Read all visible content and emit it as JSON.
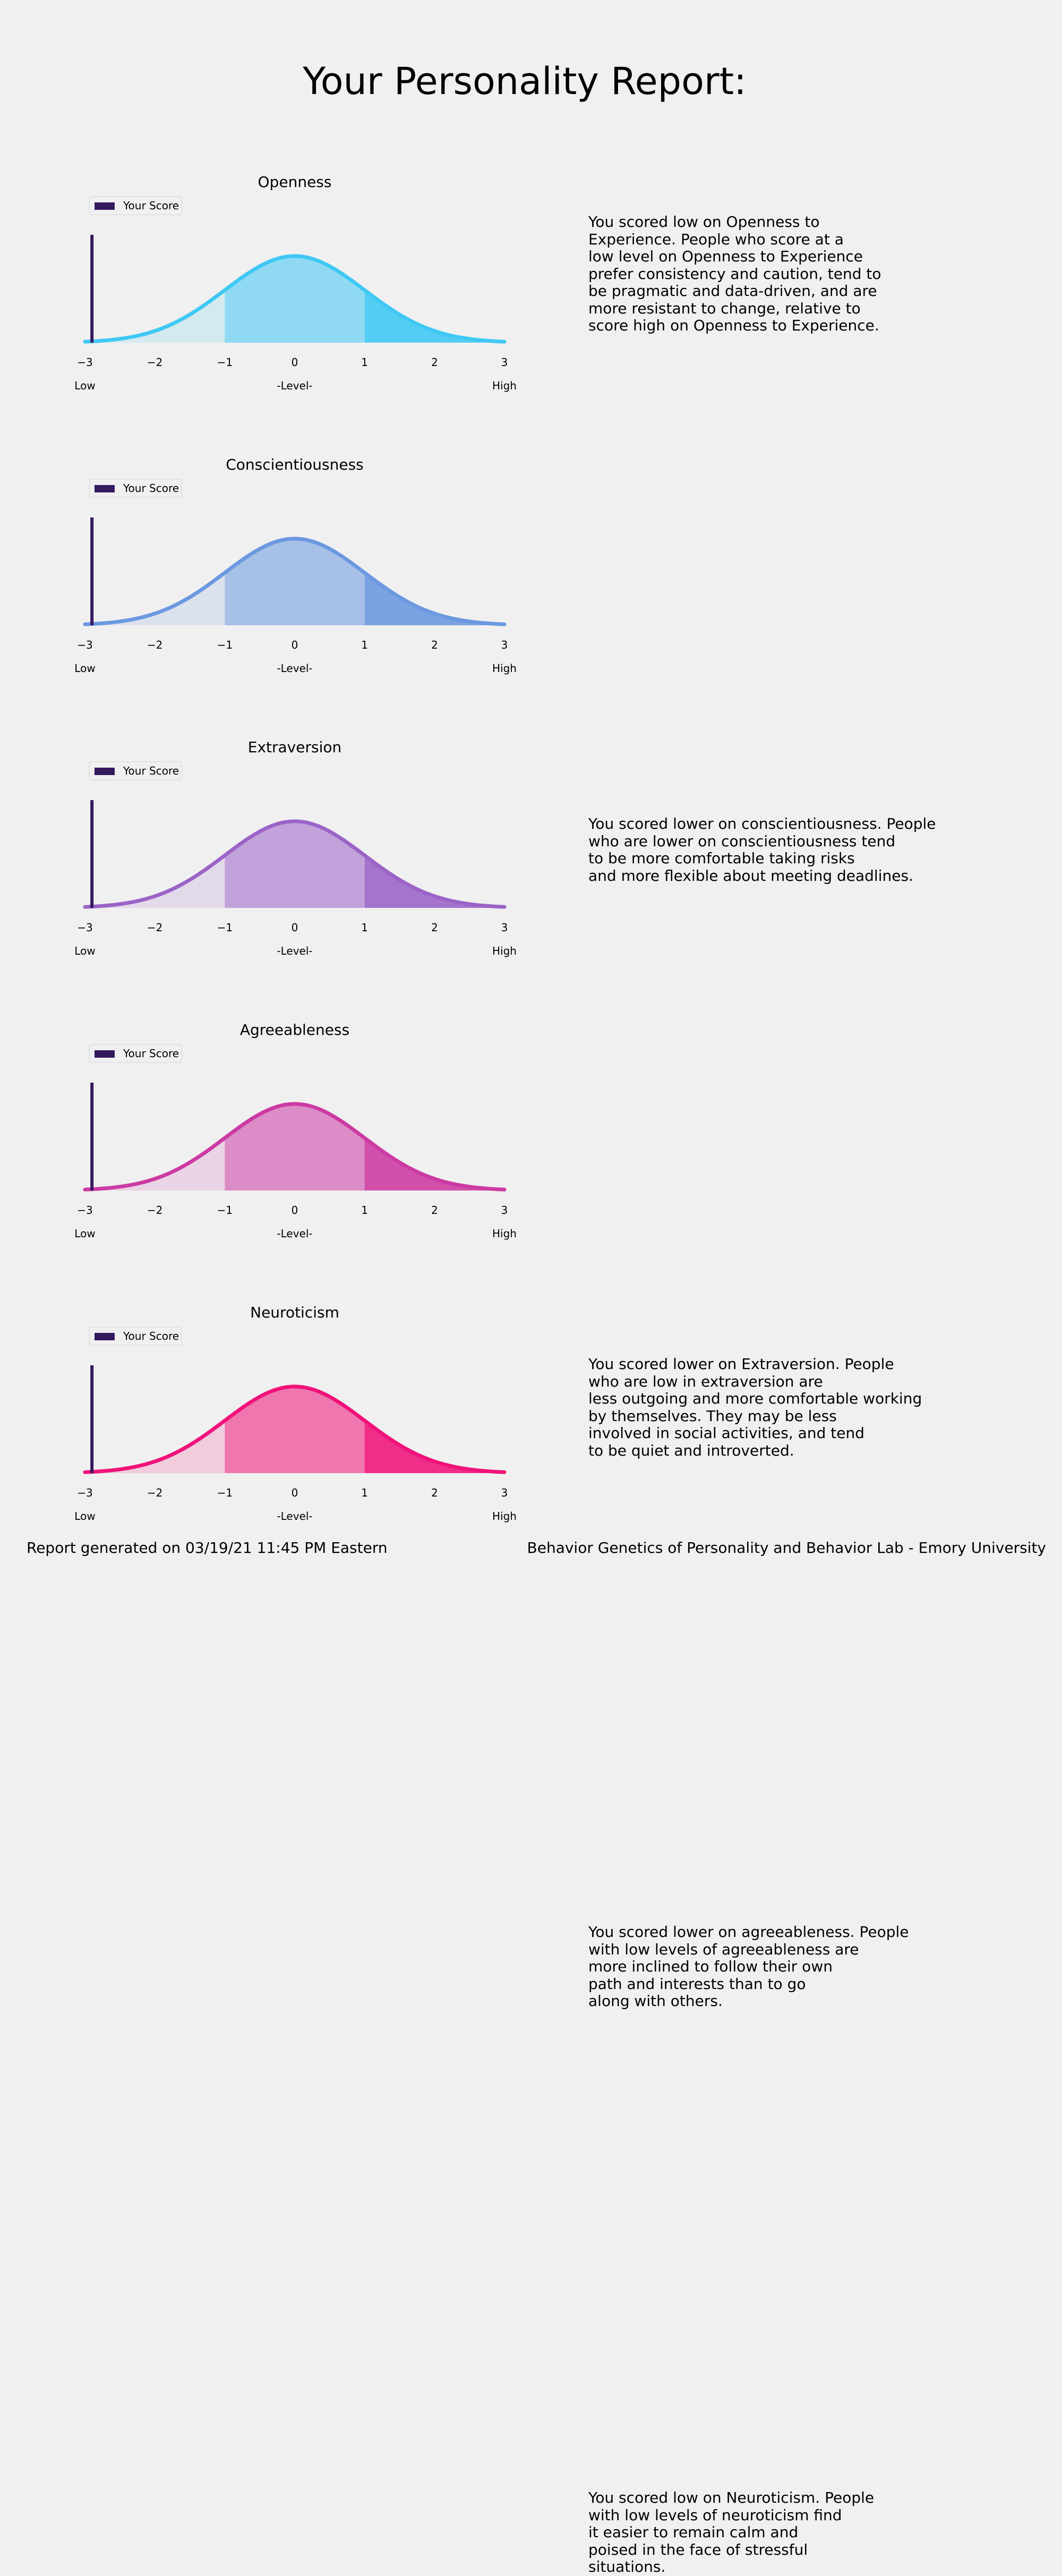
{
  "report_title": "Your Personality Report:",
  "footer": {
    "generated": "Report generated on 03/19/21 11:45 PM Eastern",
    "lab": "Behavior Genetics of Personality and Behavior Lab - Emory University"
  },
  "chart_data": [
    {
      "type": "area",
      "title": "Openness",
      "xlabel": "-Level-",
      "x_tick_labels": [
        "−3",
        "−2",
        "−1",
        "0",
        "1",
        "2",
        "3"
      ],
      "xlim": [
        -3,
        3
      ],
      "low_label": "Low",
      "high_label": "High",
      "legend_label": "Your Score",
      "legend_position": "top-left",
      "your_score": -2.9,
      "curve": "standard normal density",
      "shaded_bands": [
        -1,
        1
      ],
      "color": "#3fc8f4",
      "score_color": "#35195f",
      "description": "You scored low on Openness to\nExperience. People who score at a\nlow level on Openness to Experience\nprefer consistency and caution, tend to\nbe pragmatic and data-driven, and are\nmore resistant to change, relative to\nscore high on Openness to Experience."
    },
    {
      "type": "area",
      "title": "Conscientiousness",
      "xlabel": "-Level-",
      "x_tick_labels": [
        "−3",
        "−2",
        "−1",
        "0",
        "1",
        "2",
        "3"
      ],
      "xlim": [
        -3,
        3
      ],
      "low_label": "Low",
      "high_label": "High",
      "legend_label": "Your Score",
      "legend_position": "top-left",
      "your_score": -2.9,
      "curve": "standard normal density",
      "shaded_bands": [
        -1,
        1
      ],
      "color": "#6b98e0",
      "score_color": "#35195f",
      "description": "You scored lower on conscientiousness. People\nwho are lower on conscientiousness tend\nto be more comfortable taking risks\nand more flexible about meeting deadlines."
    },
    {
      "type": "area",
      "title": "Extraversion",
      "xlabel": "-Level-",
      "x_tick_labels": [
        "−3",
        "−2",
        "−1",
        "0",
        "1",
        "2",
        "3"
      ],
      "xlim": [
        -3,
        3
      ],
      "low_label": "Low",
      "high_label": "High",
      "legend_label": "Your Score",
      "legend_position": "top-left",
      "your_score": -2.9,
      "curve": "standard normal density",
      "shaded_bands": [
        -1,
        1
      ],
      "color": "#9b63c8",
      "score_color": "#35195f",
      "description": "You scored lower on Extraversion. People\nwho are low in extraversion are\nless outgoing and more comfortable working\nby themselves. They may be less\ninvolved in social activities, and tend\nto be quiet and introverted."
    },
    {
      "type": "area",
      "title": "Agreeableness",
      "xlabel": "-Level-",
      "x_tick_labels": [
        "−3",
        "−2",
        "−1",
        "0",
        "1",
        "2",
        "3"
      ],
      "xlim": [
        -3,
        3
      ],
      "low_label": "Low",
      "high_label": "High",
      "legend_label": "Your Score",
      "legend_position": "top-left",
      "your_score": -2.9,
      "curve": "standard normal density",
      "shaded_bands": [
        -1,
        1
      ],
      "color": "#cc3aa3",
      "score_color": "#35195f",
      "description": "You scored lower on agreeableness. People\nwith low levels of agreeableness are\nmore inclined to follow their own\npath and interests than to go\nalong with others."
    },
    {
      "type": "area",
      "title": "Neuroticism",
      "xlabel": "-Level-",
      "x_tick_labels": [
        "−3",
        "−2",
        "−1",
        "0",
        "1",
        "2",
        "3"
      ],
      "xlim": [
        -3,
        3
      ],
      "low_label": "Low",
      "high_label": "High",
      "legend_label": "Your Score",
      "legend_position": "top-left",
      "your_score": -2.9,
      "curve": "standard normal density",
      "shaded_bands": [
        -1,
        1
      ],
      "color": "#f0127a",
      "score_color": "#35195f",
      "description": "You scored low on Neuroticism. People\nwith low levels of neuroticism find\nit easier to remain calm and\npoised in the face of stressful\nsituations."
    }
  ]
}
